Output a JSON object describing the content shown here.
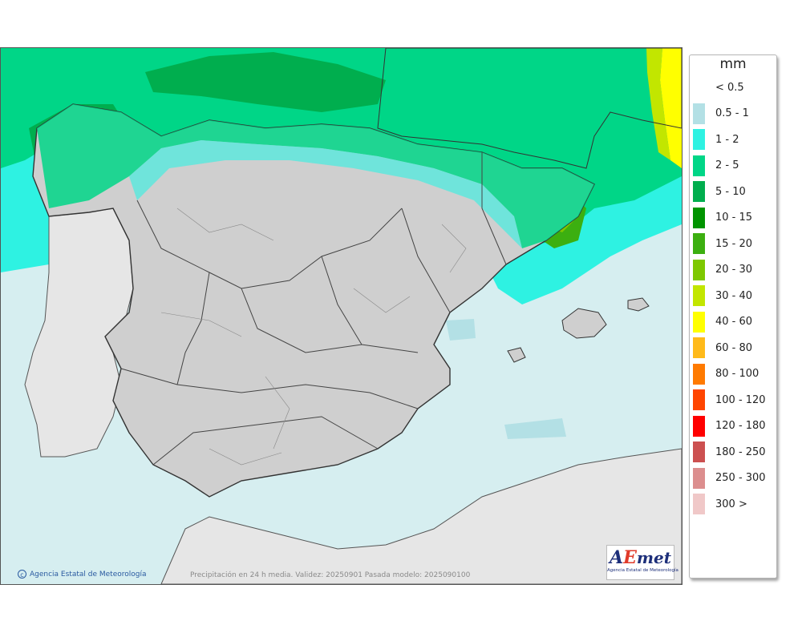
{
  "map": {
    "caption": "Precipitación en 24 h media. Validez: 20250901 Pasada modelo: 2025090100",
    "credit": "Agencia Estatal de Meteorología",
    "logo": {
      "letter_a": "A",
      "letter_e": "E",
      "met": "met",
      "subtitle": "Agencia Estatal de Meteorología"
    },
    "colors": {
      "sea_background": "#d6eef0",
      "land_outside": "#e6e6e6",
      "spain_relief": "#cfcfcf",
      "border_lines": "#333333"
    }
  },
  "legend": {
    "unit": "mm",
    "items": [
      {
        "label": "< 0.5",
        "color": ""
      },
      {
        "label": "0.5 - 1",
        "color": "#b3e0e5"
      },
      {
        "label": "1 - 2",
        "color": "#2ef2e2"
      },
      {
        "label": "2 - 5",
        "color": "#00d687"
      },
      {
        "label": "5 - 10",
        "color": "#00ae4e"
      },
      {
        "label": "10 - 15",
        "color": "#009400"
      },
      {
        "label": "15 - 20",
        "color": "#3caf10"
      },
      {
        "label": "20 - 30",
        "color": "#7ec800"
      },
      {
        "label": "30 - 40",
        "color": "#c2e600"
      },
      {
        "label": "40 - 60",
        "color": "#ffff00"
      },
      {
        "label": "60 - 80",
        "color": "#ffba1a"
      },
      {
        "label": "80 - 100",
        "color": "#ff7a00"
      },
      {
        "label": "100 - 120",
        "color": "#ff4500"
      },
      {
        "label": "120 - 180",
        "color": "#ff0000"
      },
      {
        "label": "180 - 250",
        "color": "#cc5050"
      },
      {
        "label": "250 - 300",
        "color": "#dc8e8e"
      },
      {
        "label": "300 >",
        "color": "#f0c8c8"
      }
    ]
  }
}
